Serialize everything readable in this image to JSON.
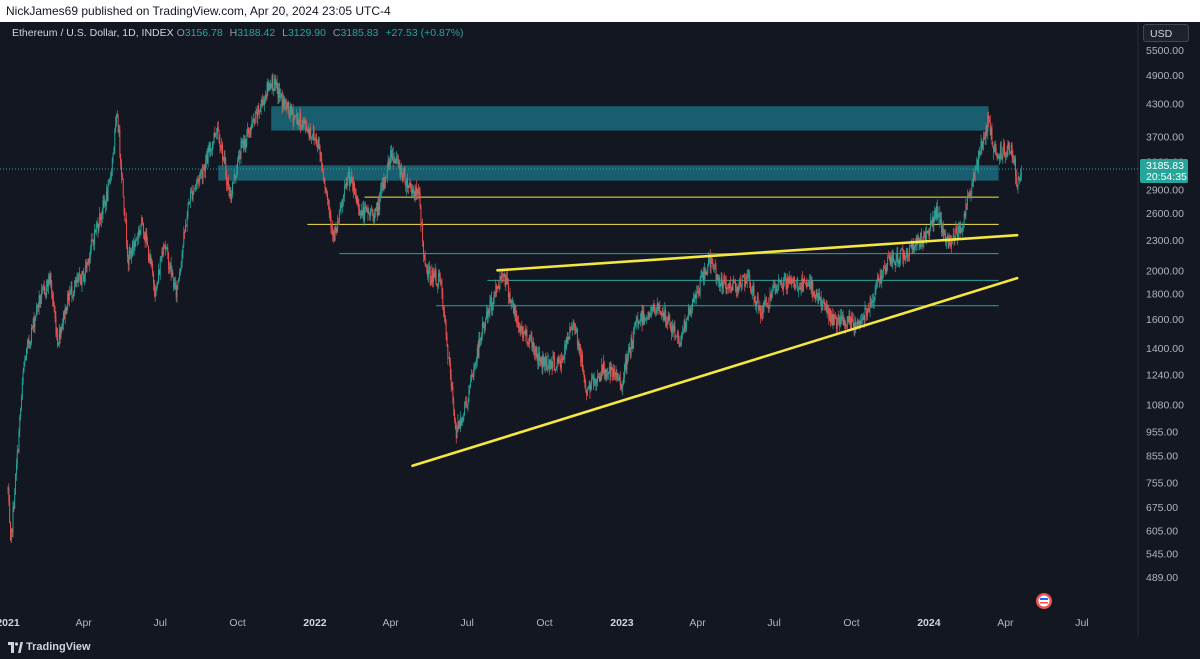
{
  "header": {
    "publisher_line": "NickJames69 published on TradingView.com, Apr 20, 2024 23:05 UTC-4"
  },
  "legend": {
    "symbol": "Ethereum / U.S. Dollar, 1D, INDEX",
    "open_label": "O",
    "open": "3156.78",
    "high_label": "H",
    "high": "3188.42",
    "low_label": "L",
    "low": "3129.90",
    "close_label": "C",
    "close": "3185.83",
    "change": "+27.53 (+0.87%)"
  },
  "currency_button": "USD",
  "price_badge": {
    "price": "3185.83",
    "countdown": "20:54:35"
  },
  "footer": {
    "brand": "TradingView"
  },
  "colors": {
    "background": "#131722",
    "up": "#26a69a",
    "down": "#ef5350",
    "zone": "#1b6b7b",
    "trendline": "#f5e642",
    "axis_text": "#b2b5be"
  },
  "chart_data": {
    "type": "candlestick",
    "title": "Ethereum / U.S. Dollar, 1D, INDEX",
    "y_scale": "log",
    "ylim": [
      440,
      6200
    ],
    "y_ticks": [
      "5500.00",
      "4900.00",
      "4300.00",
      "3700.00",
      "3300.00",
      "2900.00",
      "2600.00",
      "2300.00",
      "2000.00",
      "1800.00",
      "1600.00",
      "1400.00",
      "1240.00",
      "1080.00",
      "955.00",
      "855.00",
      "755.00",
      "675.00",
      "605.00",
      "545.00",
      "489.00"
    ],
    "xlim": [
      "2021-01-01",
      "2024-08-01"
    ],
    "x_ticks": [
      {
        "label": "2021",
        "date": "2021-01-01"
      },
      {
        "label": "Apr",
        "date": "2021-04-01"
      },
      {
        "label": "Jul",
        "date": "2021-07-01"
      },
      {
        "label": "Oct",
        "date": "2021-10-01"
      },
      {
        "label": "2022",
        "date": "2022-01-01"
      },
      {
        "label": "Apr",
        "date": "2022-04-01"
      },
      {
        "label": "Jul",
        "date": "2022-07-01"
      },
      {
        "label": "Oct",
        "date": "2022-10-01"
      },
      {
        "label": "2023",
        "date": "2023-01-01"
      },
      {
        "label": "Apr",
        "date": "2023-04-01"
      },
      {
        "label": "Jul",
        "date": "2023-07-01"
      },
      {
        "label": "Oct",
        "date": "2023-10-01"
      },
      {
        "label": "2024",
        "date": "2024-01-01"
      },
      {
        "label": "Apr",
        "date": "2024-04-01"
      },
      {
        "label": "Jul",
        "date": "2024-07-01"
      }
    ],
    "price_path": [
      [
        "2021-01-01",
        730
      ],
      [
        "2021-01-04",
        560
      ],
      [
        "2021-01-20",
        1300
      ],
      [
        "2021-02-05",
        1700
      ],
      [
        "2021-02-20",
        1930
      ],
      [
        "2021-03-01",
        1450
      ],
      [
        "2021-03-15",
        1800
      ],
      [
        "2021-04-01",
        1950
      ],
      [
        "2021-04-15",
        2400
      ],
      [
        "2021-05-01",
        2900
      ],
      [
        "2021-05-11",
        4100
      ],
      [
        "2021-05-24",
        2100
      ],
      [
        "2021-06-10",
        2500
      ],
      [
        "2021-06-26",
        1800
      ],
      [
        "2021-07-05",
        2300
      ],
      [
        "2021-07-20",
        1800
      ],
      [
        "2021-08-05",
        2800
      ],
      [
        "2021-08-25",
        3300
      ],
      [
        "2021-09-07",
        3900
      ],
      [
        "2021-09-22",
        2800
      ],
      [
        "2021-10-05",
        3500
      ],
      [
        "2021-10-22",
        4000
      ],
      [
        "2021-11-10",
        4800
      ],
      [
        "2021-11-25",
        4300
      ],
      [
        "2021-12-04",
        4100
      ],
      [
        "2021-12-20",
        3900
      ],
      [
        "2022-01-05",
        3600
      ],
      [
        "2022-01-24",
        2300
      ],
      [
        "2022-02-10",
        3100
      ],
      [
        "2022-02-25",
        2600
      ],
      [
        "2022-03-15",
        2600
      ],
      [
        "2022-04-02",
        3450
      ],
      [
        "2022-04-20",
        3000
      ],
      [
        "2022-05-05",
        2800
      ],
      [
        "2022-05-12",
        2000
      ],
      [
        "2022-05-30",
        1900
      ],
      [
        "2022-06-18",
        950
      ],
      [
        "2022-07-01",
        1100
      ],
      [
        "2022-07-20",
        1550
      ],
      [
        "2022-08-13",
        2000
      ],
      [
        "2022-08-30",
        1550
      ],
      [
        "2022-09-15",
        1450
      ],
      [
        "2022-09-25",
        1320
      ],
      [
        "2022-10-20",
        1300
      ],
      [
        "2022-11-05",
        1600
      ],
      [
        "2022-11-20",
        1150
      ],
      [
        "2022-12-10",
        1270
      ],
      [
        "2023-01-01",
        1200
      ],
      [
        "2023-01-20",
        1600
      ],
      [
        "2023-02-15",
        1680
      ],
      [
        "2023-03-10",
        1450
      ],
      [
        "2023-04-15",
        2100
      ],
      [
        "2023-05-01",
        1850
      ],
      [
        "2023-06-01",
        1900
      ],
      [
        "2023-06-15",
        1650
      ],
      [
        "2023-07-10",
        1900
      ],
      [
        "2023-08-15",
        1850
      ],
      [
        "2023-09-10",
        1580
      ],
      [
        "2023-10-10",
        1560
      ],
      [
        "2023-10-28",
        1800
      ],
      [
        "2023-11-10",
        2050
      ],
      [
        "2023-12-01",
        2150
      ],
      [
        "2023-12-28",
        2350
      ],
      [
        "2024-01-10",
        2600
      ],
      [
        "2024-01-24",
        2250
      ],
      [
        "2024-02-10",
        2500
      ],
      [
        "2024-02-28",
        3300
      ],
      [
        "2024-03-12",
        4000
      ],
      [
        "2024-03-20",
        3400
      ],
      [
        "2024-04-01",
        3500
      ],
      [
        "2024-04-10",
        3500
      ],
      [
        "2024-04-15",
        2900
      ],
      [
        "2024-04-20",
        3185
      ]
    ],
    "zones": [
      {
        "from": "2021-11-10",
        "to": "2024-03-12",
        "low": 3800,
        "high": 4250
      },
      {
        "from": "2021-09-08",
        "to": "2024-03-24",
        "low": 3020,
        "high": 3240
      }
    ],
    "support_lines": [
      {
        "from": "2022-03-01",
        "to": "2024-03-24",
        "price": 2800,
        "color": "#f5e642"
      },
      {
        "from": "2021-12-23",
        "to": "2024-03-24",
        "price": 2470,
        "color": "#f5e642"
      },
      {
        "from": "2022-01-30",
        "to": "2024-03-24",
        "price": 2160,
        "color": "#26a69a"
      },
      {
        "from": "2022-07-25",
        "to": "2024-03-24",
        "price": 1910,
        "color": "#26a69a"
      },
      {
        "from": "2022-05-25",
        "to": "2024-03-24",
        "price": 1700,
        "color": "#26a69a"
      }
    ],
    "trendlines": [
      {
        "start": [
          "2022-08-06",
          2000
        ],
        "end": [
          "2024-04-15",
          2350
        ]
      },
      {
        "start": [
          "2022-04-27",
          815
        ],
        "end": [
          "2024-04-15",
          1930
        ]
      }
    ],
    "last_price": 3185.83
  }
}
